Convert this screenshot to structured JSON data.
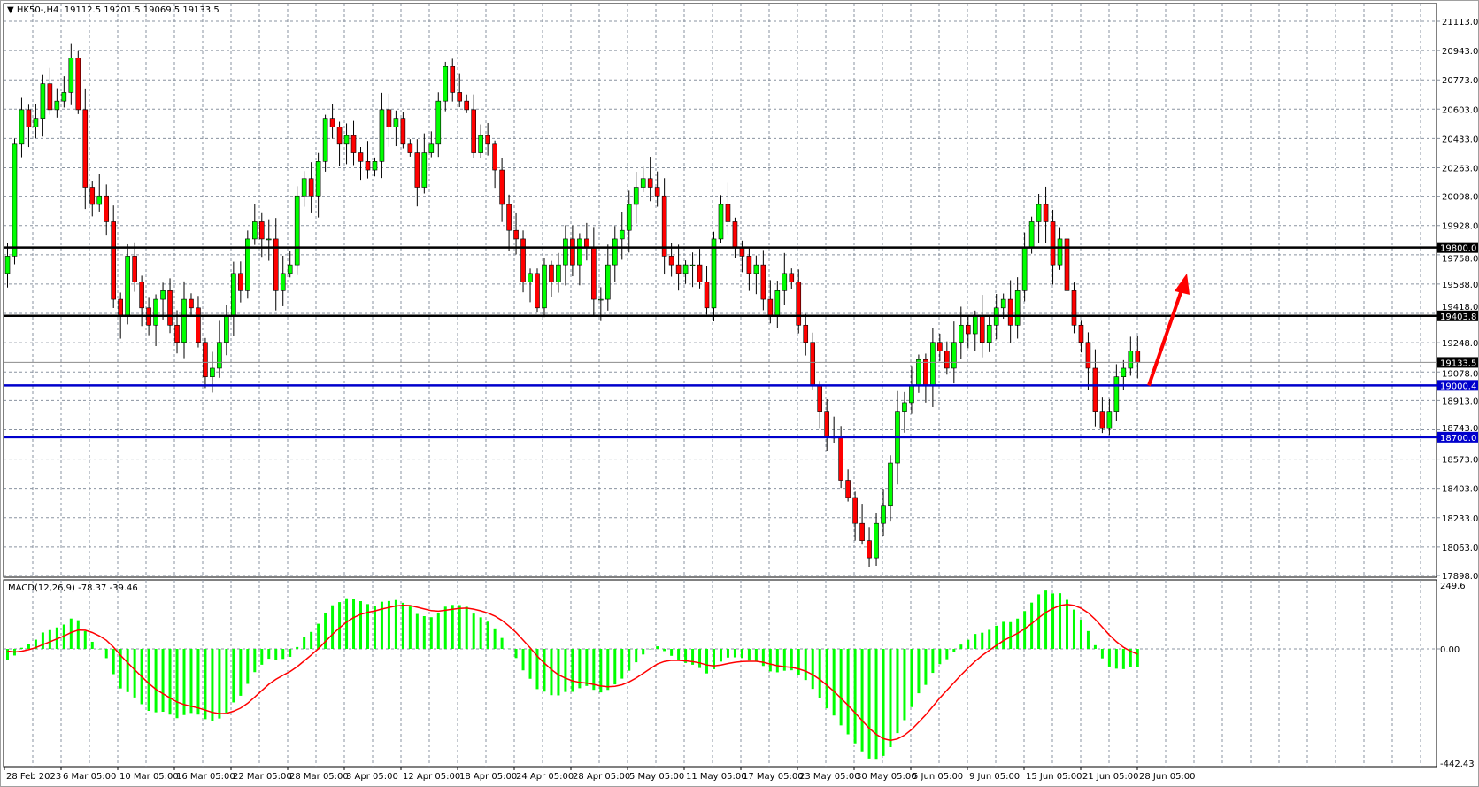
{
  "header": {
    "symbol": "HK50-,H4",
    "ohlc": "19112.5 19201.5 19069.5 19133.5",
    "menu_icon": "triangle-down-icon"
  },
  "macd_header": {
    "label": "MACD(12,26,9) -78.37 -39.46"
  },
  "colors": {
    "bull": "#00ff00",
    "bear": "#ff0000",
    "support": "#0000cc",
    "resistance": "#000000",
    "macd_hist": "#00ff00",
    "macd_signal": "#ff0000",
    "arrow": "#ff0000",
    "grid": "#8a93a0"
  },
  "chart_data": {
    "type": "candlestick",
    "price_axis": {
      "ticks": [
        "21113.0",
        "20943.0",
        "20773.0",
        "20603.0",
        "20433.0",
        "20263.0",
        "20098.0",
        "19928.0",
        "19758.0",
        "19588.0",
        "19418.0",
        "19248.0",
        "19078.0",
        "18913.0",
        "18743.0",
        "18573.0",
        "18403.0",
        "18233.0",
        "18063.0",
        "17898.0"
      ],
      "range": [
        17898,
        21113
      ]
    },
    "macd_axis": {
      "ticks": [
        "249.6",
        "0.00",
        "-442.43"
      ],
      "range": [
        -442.43,
        249.6
      ]
    },
    "time_axis": {
      "ticks": [
        "28 Feb 2023",
        "6 Mar 05:00",
        "10 Mar 05:00",
        "16 Mar 05:00",
        "22 Mar 05:00",
        "28 Mar 05:00",
        "3 Apr 05:00",
        "12 Apr 05:00",
        "18 Apr 05:00",
        "24 Apr 05:00",
        "28 Apr 05:00",
        "5 May 05:00",
        "11 May 05:00",
        "17 May 05:00",
        "23 May 05:00",
        "30 May 05:00",
        "5 Jun 05:00",
        "9 Jun 05:00",
        "15 Jun 05:00",
        "21 Jun 05:00",
        "28 Jun 05:00"
      ]
    },
    "closes": [
      19750,
      20400,
      20600,
      20500,
      20550,
      20750,
      20600,
      20650,
      20700,
      20900,
      20600,
      20150,
      20050,
      20100,
      19950,
      19500,
      19400,
      19750,
      19600,
      19450,
      19350,
      19500,
      19550,
      19350,
      19250,
      19500,
      19450,
      19250,
      19050,
      19100,
      19250,
      19400,
      19650,
      19550,
      19850,
      19950,
      19850,
      19850,
      19550,
      19650,
      19700,
      20100,
      20200,
      20100,
      20300,
      20550,
      20500,
      20400,
      20450,
      20350,
      20300,
      20250,
      20300,
      20600,
      20500,
      20550,
      20400,
      20350,
      20150,
      20350,
      20400,
      20650,
      20850,
      20700,
      20650,
      20600,
      20350,
      20450,
      20400,
      20250,
      20050,
      19900,
      19850,
      19600,
      19650,
      19450,
      19700,
      19600,
      19700,
      19850,
      19700,
      19850,
      19800,
      19500,
      19500,
      19700,
      19850,
      19900,
      20050,
      20150,
      20200,
      20150,
      20100,
      19750,
      19700,
      19650,
      19700,
      19700,
      19600,
      19450,
      19850,
      20050,
      19950,
      19800,
      19750,
      19650,
      19700,
      19500,
      19400,
      19550,
      19650,
      19600,
      19350,
      19250,
      19000,
      18850,
      18700,
      18700,
      18450,
      18350,
      18200,
      18100,
      18000,
      18200,
      18300,
      18550,
      18850,
      18900,
      19000,
      19150,
      19000,
      19250,
      19200,
      19100,
      19250,
      19350,
      19300,
      19400,
      19250,
      19350,
      19450,
      19500,
      19350,
      19550,
      19800,
      19950,
      20050,
      19950,
      19700,
      19850,
      19550,
      19350,
      19250,
      19100,
      18850,
      18750,
      18850,
      19050,
      19100,
      19200,
      19133.5
    ],
    "levels": [
      {
        "price": 19800.0,
        "label": "19800.0",
        "kind": "resistance"
      },
      {
        "price": 19403.8,
        "label": "19403.8",
        "kind": "resistance"
      },
      {
        "price": 19133.5,
        "label": "19133.5",
        "kind": "current"
      },
      {
        "price": 19000.4,
        "label": "19000.4",
        "kind": "support"
      },
      {
        "price": 18700.0,
        "label": "18700.0",
        "kind": "support"
      }
    ],
    "indicator": {
      "name": "MACD",
      "fast": 12,
      "slow": 26,
      "signal": 9,
      "main": -78.37,
      "signal_value": -39.46
    },
    "annotation": {
      "type": "arrow",
      "direction": "up",
      "from_price": 19000,
      "to_price": 19650
    }
  }
}
